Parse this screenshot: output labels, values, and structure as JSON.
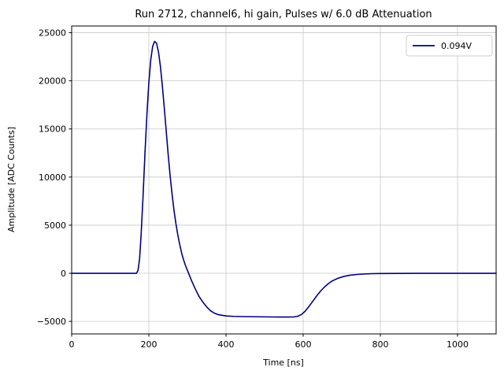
{
  "chart_data": {
    "type": "line",
    "title": "Run 2712, channel6, hi gain, Pulses w/ 6.0 dB Attenuation",
    "xlabel": "Time [ns]",
    "ylabel": "Amplitude [ADC Counts]",
    "xlim": [
      0,
      1100
    ],
    "ylim": [
      -6300,
      25700
    ],
    "xticks": [
      0,
      200,
      400,
      600,
      800,
      1000
    ],
    "yticks": [
      -5000,
      0,
      5000,
      10000,
      15000,
      20000,
      25000
    ],
    "grid": true,
    "grid_color": "#c8c8c8",
    "background_color": "#ffffff",
    "legend_position": "upper right",
    "series": [
      {
        "name": "0.094V",
        "color": "#000080",
        "x": [
          0,
          20,
          40,
          60,
          80,
          100,
          120,
          140,
          160,
          168,
          172,
          176,
          180,
          185,
          190,
          195,
          200,
          205,
          210,
          215,
          220,
          225,
          230,
          235,
          240,
          245,
          250,
          255,
          260,
          265,
          270,
          275,
          280,
          285,
          290,
          295,
          300,
          310,
          320,
          330,
          340,
          350,
          360,
          370,
          380,
          400,
          420,
          440,
          460,
          480,
          500,
          520,
          540,
          560,
          575,
          585,
          595,
          605,
          615,
          625,
          635,
          645,
          655,
          665,
          675,
          690,
          705,
          720,
          740,
          760,
          780,
          800,
          850,
          900,
          950,
          1000,
          1050,
          1100
        ],
        "y": [
          0,
          0,
          0,
          0,
          0,
          0,
          0,
          0,
          0,
          0,
          300,
          1500,
          4000,
          8000,
          12500,
          16500,
          19800,
          22200,
          23600,
          24100,
          23900,
          23000,
          21500,
          19500,
          17200,
          14800,
          12400,
          10200,
          8300,
          6600,
          5200,
          4000,
          3000,
          2100,
          1400,
          800,
          300,
          -700,
          -1600,
          -2400,
          -3000,
          -3500,
          -3900,
          -4150,
          -4300,
          -4430,
          -4480,
          -4500,
          -4510,
          -4520,
          -4530,
          -4540,
          -4545,
          -4545,
          -4540,
          -4480,
          -4300,
          -3950,
          -3450,
          -2900,
          -2350,
          -1850,
          -1430,
          -1080,
          -800,
          -520,
          -330,
          -210,
          -120,
          -70,
          -40,
          -25,
          -10,
          -5,
          0,
          0,
          0,
          0
        ]
      }
    ]
  }
}
